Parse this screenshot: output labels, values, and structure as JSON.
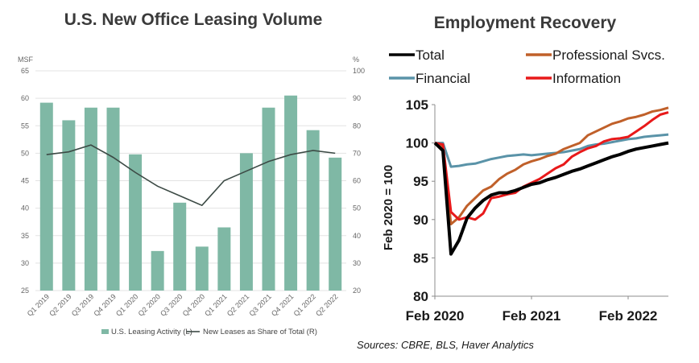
{
  "left_chart": {
    "title": "U.S. New Office Leasing Volume",
    "left_unit": "MSF",
    "right_unit": "%"
  },
  "right_chart": {
    "title": "Employment Recovery",
    "ylabel": "Feb 2020 = 100"
  },
  "source": "Sources: CBRE, BLS, Haver Analytics",
  "chart_data": [
    {
      "type": "bar",
      "title": "U.S. New Office Leasing Volume",
      "categories": [
        "Q1 2019",
        "Q2 2019",
        "Q3 2019",
        "Q4 2019",
        "Q1 2020",
        "Q2 2020",
        "Q3 2020",
        "Q4 2020",
        "Q1 2021",
        "Q2 2021",
        "Q3 2021",
        "Q4 2021",
        "Q1 2022",
        "Q2 2022"
      ],
      "series": [
        {
          "name": "U.S. Leasing Activity (L)",
          "type": "bar",
          "axis": "left",
          "color": "#7fb8a5",
          "values": [
            59.2,
            56.0,
            58.3,
            58.3,
            49.8,
            32.2,
            41.0,
            33.0,
            36.5,
            50.0,
            58.3,
            60.5,
            54.2,
            49.2
          ]
        },
        {
          "name": "New Leases as Share of Total (R)",
          "type": "line",
          "axis": "right",
          "color": "#3c4a45",
          "values": [
            69.5,
            70.5,
            73.0,
            68.5,
            63.0,
            58.0,
            54.5,
            51.0,
            60.0,
            63.5,
            67.0,
            69.5,
            71.0,
            70.0
          ]
        }
      ],
      "left_axis": {
        "label": "MSF",
        "ylim": [
          25,
          65
        ],
        "ticks": [
          25,
          30,
          35,
          40,
          45,
          50,
          55,
          60,
          65
        ]
      },
      "right_axis": {
        "label": "%",
        "ylim": [
          20,
          100
        ],
        "ticks": [
          20,
          30,
          40,
          50,
          60,
          70,
          80,
          90,
          100
        ]
      },
      "grid": true,
      "legend": "bottom"
    },
    {
      "type": "line",
      "title": "Employment Recovery",
      "ylabel": "Feb 2020 = 100",
      "ylim": [
        80,
        105
      ],
      "yticks": [
        80,
        85,
        90,
        95,
        100,
        105
      ],
      "xticks": [
        "Feb 2020",
        "Feb 2021",
        "Feb 2022"
      ],
      "x": [
        "2020-02",
        "2020-03",
        "2020-04",
        "2020-05",
        "2020-06",
        "2020-07",
        "2020-08",
        "2020-09",
        "2020-10",
        "2020-11",
        "2020-12",
        "2021-01",
        "2021-02",
        "2021-03",
        "2021-04",
        "2021-05",
        "2021-06",
        "2021-07",
        "2021-08",
        "2021-09",
        "2021-10",
        "2021-11",
        "2021-12",
        "2022-01",
        "2022-02",
        "2022-03",
        "2022-04",
        "2022-05",
        "2022-06",
        "2022-07"
      ],
      "series": [
        {
          "name": "Total",
          "color": "#000000",
          "values": [
            100,
            99.0,
            85.5,
            87.3,
            90.2,
            91.5,
            92.5,
            93.2,
            93.5,
            93.5,
            93.8,
            94.2,
            94.6,
            94.8,
            95.2,
            95.5,
            95.9,
            96.3,
            96.6,
            97.0,
            97.4,
            97.8,
            98.2,
            98.5,
            98.9,
            99.2,
            99.4,
            99.6,
            99.8,
            100.0
          ]
        },
        {
          "name": "Professional Svcs.",
          "color": "#c0602a",
          "values": [
            100,
            99.5,
            89.4,
            90.3,
            91.8,
            92.8,
            93.8,
            94.3,
            95.3,
            96.0,
            96.5,
            97.2,
            97.6,
            97.9,
            98.3,
            98.6,
            99.2,
            99.6,
            100.0,
            101.0,
            101.5,
            102.0,
            102.5,
            102.8,
            103.2,
            103.4,
            103.7,
            104.1,
            104.3,
            104.6
          ]
        },
        {
          "name": "Financial",
          "color": "#5a93a8",
          "values": [
            100,
            100.0,
            96.9,
            97.0,
            97.2,
            97.3,
            97.6,
            97.9,
            98.1,
            98.3,
            98.4,
            98.5,
            98.4,
            98.5,
            98.6,
            98.7,
            98.8,
            99.0,
            99.2,
            99.6,
            99.8,
            99.9,
            100.1,
            100.3,
            100.5,
            100.6,
            100.8,
            100.9,
            101.0,
            101.1
          ]
        },
        {
          "name": "Information",
          "color": "#e8191a",
          "values": [
            100,
            99.8,
            91.0,
            90.0,
            90.3,
            90.0,
            90.8,
            92.8,
            93.0,
            93.3,
            93.5,
            94.3,
            94.8,
            95.3,
            96.0,
            96.7,
            97.2,
            98.2,
            98.8,
            99.3,
            99.6,
            100.2,
            100.5,
            100.6,
            100.8,
            101.5,
            102.2,
            103.0,
            103.7,
            104.0
          ]
        }
      ],
      "grid": false,
      "legend": "top"
    }
  ]
}
